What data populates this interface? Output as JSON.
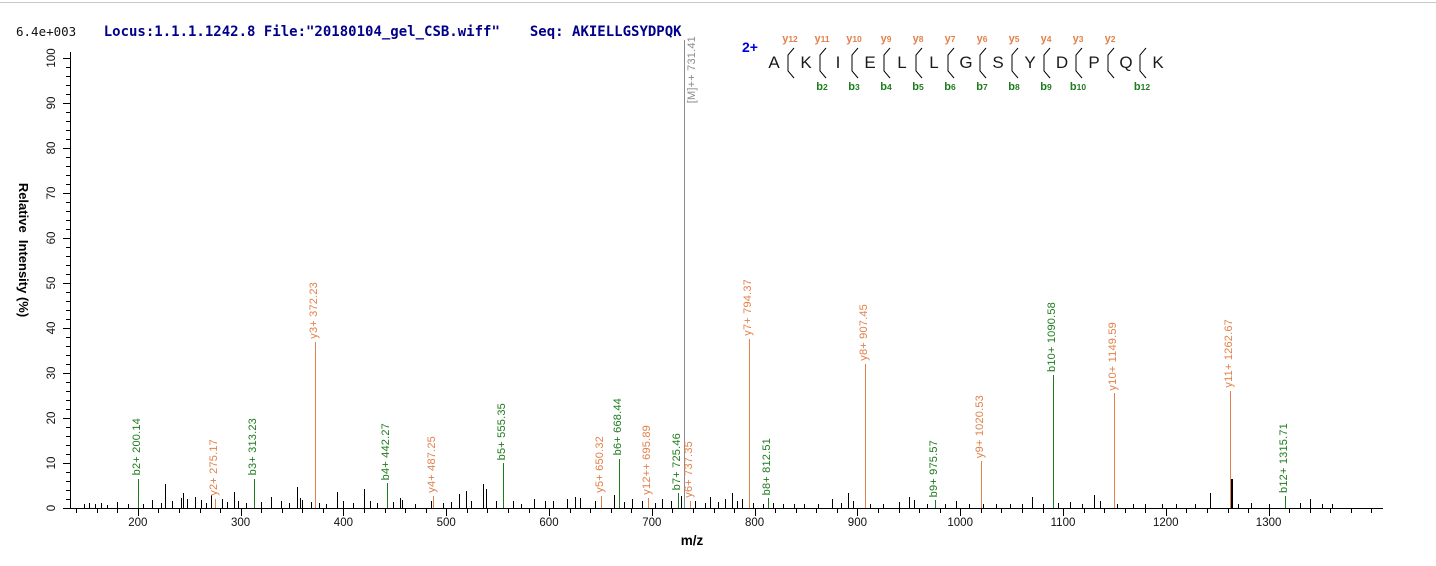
{
  "header": {
    "locus_file": "Locus:1.1.1.1242.8 File:\"20180104_gel_CSB.wiff\"",
    "seq_line": "Seq: AKIELLGSYDPQK",
    "intensity_scale": "6.4e+003"
  },
  "colors": {
    "y_ion": "#E2814B",
    "b_ion": "#1E7B1E",
    "noise": "#000000",
    "precursor": "#8a8a8a",
    "charge": "#0000DD",
    "header_text": "#00008B"
  },
  "sequence_diagram": {
    "charge": "2+",
    "residues": [
      "A",
      "K",
      "I",
      "E",
      "L",
      "L",
      "G",
      "S",
      "Y",
      "D",
      "P",
      "Q",
      "K"
    ],
    "boundaries": [
      {
        "y": "y12",
        "b": ""
      },
      {
        "y": "y11",
        "b": "b2"
      },
      {
        "y": "y10",
        "b": "b3"
      },
      {
        "y": "y9",
        "b": "b4"
      },
      {
        "y": "y8",
        "b": "b5"
      },
      {
        "y": "y7",
        "b": "b6"
      },
      {
        "y": "y6",
        "b": "b7"
      },
      {
        "y": "y5",
        "b": "b8"
      },
      {
        "y": "y4",
        "b": "b9"
      },
      {
        "y": "y3",
        "b": "b10"
      },
      {
        "y": "y2",
        "b": ""
      },
      {
        "y": "",
        "b": "b12"
      }
    ]
  },
  "chart_data": {
    "type": "bar",
    "subtype": "ms2-fragment-spectrum",
    "xlabel": "m/z",
    "ylabel": "Relative  Intensity (%)",
    "xlim": [
      134,
      1411
    ],
    "ylim": [
      0,
      100
    ],
    "x_major_ticks": [
      200,
      300,
      400,
      500,
      600,
      700,
      800,
      900,
      1000,
      1100,
      1200,
      1300
    ],
    "x_minor_step": 20,
    "y_major_step": 10,
    "y_minor_step": 2,
    "grid": false,
    "precursor": {
      "label": "[M]++ 731.41",
      "mz": 731.41
    },
    "labeled_peaks": [
      {
        "ion": "b2+",
        "mz": 200.14,
        "intensity_pct": 6.5,
        "series": "b"
      },
      {
        "ion": "y2+",
        "mz": 275.17,
        "intensity_pct": 2.0,
        "series": "y"
      },
      {
        "ion": "b3+",
        "mz": 313.23,
        "intensity_pct": 6.5,
        "series": "b"
      },
      {
        "ion": "y3+",
        "mz": 372.23,
        "intensity_pct": 37.0,
        "series": "y"
      },
      {
        "ion": "b4+",
        "mz": 442.27,
        "intensity_pct": 5.5,
        "series": "b"
      },
      {
        "ion": "y4+",
        "mz": 487.25,
        "intensity_pct": 2.7,
        "series": "y"
      },
      {
        "ion": "b5+",
        "mz": 555.35,
        "intensity_pct": 10.0,
        "series": "b"
      },
      {
        "ion": "y5+",
        "mz": 650.32,
        "intensity_pct": 2.7,
        "series": "y"
      },
      {
        "ion": "b6+",
        "mz": 668.44,
        "intensity_pct": 11.0,
        "series": "b"
      },
      {
        "ion": "y12++",
        "mz": 695.89,
        "intensity_pct": 2.2,
        "series": "y"
      },
      {
        "ion": "b7+",
        "mz": 725.46,
        "intensity_pct": 3.3,
        "series": "b"
      },
      {
        "ion": "y6+",
        "mz": 737.35,
        "intensity_pct": 1.6,
        "series": "y"
      },
      {
        "ion": "y7+",
        "mz": 794.37,
        "intensity_pct": 37.5,
        "series": "y"
      },
      {
        "ion": "b8+",
        "mz": 812.51,
        "intensity_pct": 2.2,
        "series": "b"
      },
      {
        "ion": "y8+",
        "mz": 907.45,
        "intensity_pct": 32.0,
        "series": "y"
      },
      {
        "ion": "b9+",
        "mz": 975.57,
        "intensity_pct": 1.8,
        "series": "b"
      },
      {
        "ion": "y9+",
        "mz": 1020.53,
        "intensity_pct": 10.5,
        "series": "y"
      },
      {
        "ion": "b10+",
        "mz": 1090.58,
        "intensity_pct": 29.5,
        "series": "b"
      },
      {
        "ion": "y10+",
        "mz": 1149.59,
        "intensity_pct": 25.5,
        "series": "y"
      },
      {
        "ion": "y11+",
        "mz": 1262.67,
        "intensity_pct": 26.0,
        "series": "y"
      },
      {
        "ion": "b12+",
        "mz": 1315.71,
        "intensity_pct": 2.7,
        "series": "b"
      }
    ],
    "noise_peaks": [
      [
        148,
        0.8
      ],
      [
        152,
        1.2
      ],
      [
        158,
        0.8
      ],
      [
        164,
        1.2
      ],
      [
        170,
        0.7
      ],
      [
        180,
        1.4
      ],
      [
        190,
        0.8
      ],
      [
        205,
        0.9
      ],
      [
        214,
        1.8
      ],
      [
        222,
        1.2
      ],
      [
        226,
        5.3
      ],
      [
        233,
        1.5
      ],
      [
        242,
        2.2
      ],
      [
        244,
        3.3
      ],
      [
        248,
        2.0
      ],
      [
        256,
        2.5
      ],
      [
        261,
        1.8
      ],
      [
        266,
        1.2
      ],
      [
        271,
        3.0
      ],
      [
        282,
        2.0
      ],
      [
        287,
        1.3
      ],
      [
        293,
        3.6
      ],
      [
        297,
        1.5
      ],
      [
        305,
        1.2
      ],
      [
        320,
        1.4
      ],
      [
        329,
        2.5
      ],
      [
        339,
        1.6
      ],
      [
        347,
        1.2
      ],
      [
        355,
        4.6
      ],
      [
        358,
        2.2
      ],
      [
        360,
        1.8
      ],
      [
        368,
        1.4
      ],
      [
        376,
        1.2
      ],
      [
        383,
        1.0
      ],
      [
        394,
        3.5
      ],
      [
        400,
        1.6
      ],
      [
        409,
        1.1
      ],
      [
        420,
        4.2
      ],
      [
        426,
        1.5
      ],
      [
        433,
        1.2
      ],
      [
        448,
        1.4
      ],
      [
        455,
        2.2
      ],
      [
        457,
        1.8
      ],
      [
        470,
        1.0
      ],
      [
        485,
        1.6
      ],
      [
        497,
        1.2
      ],
      [
        505,
        1.4
      ],
      [
        512,
        3.2
      ],
      [
        519,
        3.8
      ],
      [
        524,
        1.5
      ],
      [
        536,
        5.4
      ],
      [
        539,
        4.2
      ],
      [
        548,
        1.6
      ],
      [
        565,
        1.5
      ],
      [
        573,
        1.0
      ],
      [
        585,
        2.0
      ],
      [
        596,
        1.6
      ],
      [
        604,
        1.5
      ],
      [
        617,
        2.0
      ],
      [
        625,
        2.4
      ],
      [
        630,
        2.2
      ],
      [
        645,
        1.5
      ],
      [
        663,
        3.0
      ],
      [
        673,
        1.4
      ],
      [
        681,
        2.0
      ],
      [
        690,
        1.6
      ],
      [
        703,
        1.2
      ],
      [
        710,
        2.0
      ],
      [
        719,
        1.5
      ],
      [
        728,
        2.6
      ],
      [
        731,
        2.2
      ],
      [
        742,
        1.5
      ],
      [
        752,
        1.2
      ],
      [
        757,
        2.4
      ],
      [
        764,
        1.4
      ],
      [
        771,
        2.0
      ],
      [
        778,
        3.4
      ],
      [
        783,
        1.6
      ],
      [
        788,
        2.0
      ],
      [
        798,
        1.2
      ],
      [
        808,
        1.0
      ],
      [
        818,
        1.1
      ],
      [
        828,
        0.8
      ],
      [
        838,
        1.0
      ],
      [
        848,
        0.8
      ],
      [
        862,
        1.0
      ],
      [
        875,
        2.0
      ],
      [
        884,
        1.2
      ],
      [
        891,
        3.4
      ],
      [
        896,
        1.5
      ],
      [
        912,
        1.0
      ],
      [
        925,
        0.8
      ],
      [
        940,
        1.4
      ],
      [
        950,
        2.4
      ],
      [
        955,
        1.8
      ],
      [
        968,
        1.0
      ],
      [
        985,
        0.9
      ],
      [
        996,
        1.5
      ],
      [
        1008,
        0.8
      ],
      [
        1022,
        1.0
      ],
      [
        1035,
        1.0
      ],
      [
        1048,
        0.8
      ],
      [
        1060,
        1.0
      ],
      [
        1070,
        2.4
      ],
      [
        1080,
        1.0
      ],
      [
        1095,
        1.2
      ],
      [
        1107,
        1.4
      ],
      [
        1118,
        1.0
      ],
      [
        1130,
        3.0
      ],
      [
        1136,
        1.6
      ],
      [
        1152,
        0.9
      ],
      [
        1168,
        0.8
      ],
      [
        1180,
        1.0
      ],
      [
        1196,
        0.8
      ],
      [
        1210,
        0.9
      ],
      [
        1228,
        1.0
      ],
      [
        1243,
        3.4
      ],
      [
        1262.9,
        6.5
      ],
      [
        1270,
        1.0
      ],
      [
        1283,
        1.1
      ],
      [
        1300,
        0.8
      ],
      [
        1316,
        1.0
      ],
      [
        1330,
        1.2
      ],
      [
        1340,
        2.0
      ],
      [
        1352,
        0.9
      ],
      [
        1362,
        0.8
      ]
    ]
  }
}
